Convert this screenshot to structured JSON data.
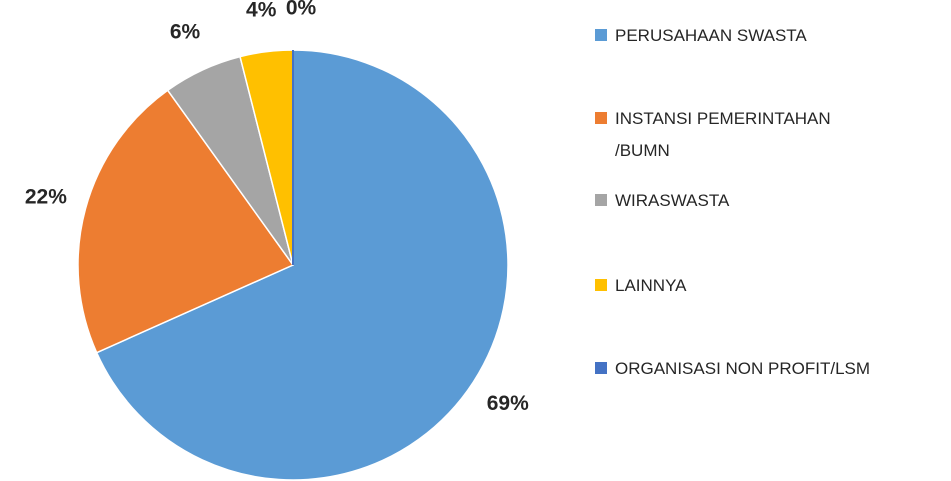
{
  "chart_data": {
    "type": "pie",
    "categories": [
      "PERUSAHAAN SWASTA",
      "INSTANSI PEMERINTAHAN /BUMN",
      "WIRASWASTA",
      "LAINNYA",
      "ORGANISASI NON PROFIT/LSM"
    ],
    "values": [
      69,
      22,
      6,
      4,
      0
    ],
    "value_labels": [
      "69%",
      "22%",
      "6%",
      "4%",
      "0%"
    ],
    "colors": [
      "#5b9bd5",
      "#ed7d31",
      "#a5a5a5",
      "#ffc000",
      "#4472c4"
    ],
    "legend": "right"
  }
}
